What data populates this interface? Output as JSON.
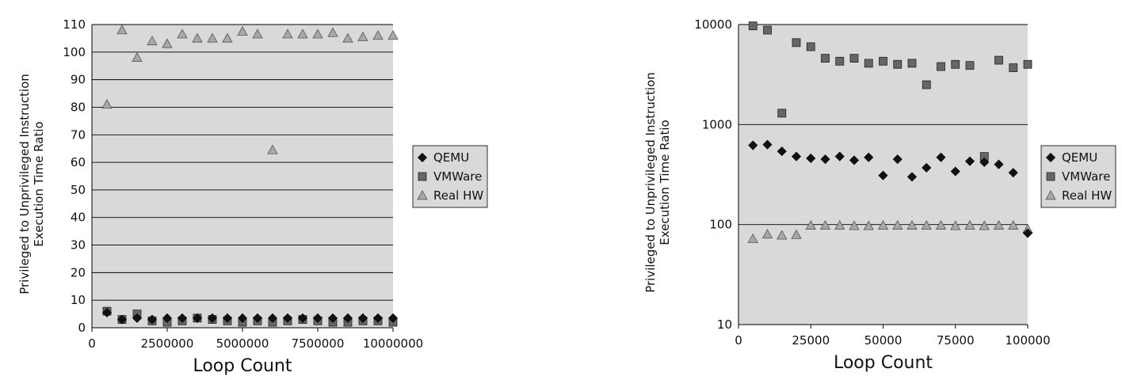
{
  "chart_data": [
    {
      "type": "scatter",
      "xlabel": "Loop Count",
      "ylabel_lines": [
        "Privileged to Unprivileged Instruction",
        "Execution Time Ratio"
      ],
      "xlim": [
        0,
        10000000
      ],
      "ylim": [
        0,
        110
      ],
      "x_ticks": [
        0,
        2500000,
        5000000,
        7500000,
        10000000
      ],
      "x_tick_labels": [
        "0",
        "2500000",
        "5000000",
        "7500000",
        "10000000"
      ],
      "y_ticks": [
        0,
        10,
        20,
        30,
        40,
        50,
        60,
        70,
        80,
        90,
        100,
        110
      ],
      "y_tick_labels": [
        "0",
        "10",
        "20",
        "30",
        "40",
        "50",
        "60",
        "70",
        "80",
        "90",
        "100",
        "110"
      ],
      "y_scale": "linear",
      "grid": "horizontal",
      "legend_position": "right",
      "series": [
        {
          "name": "QEMU",
          "marker": "diamond",
          "color": "#111111",
          "x": [
            500000,
            1000000,
            1500000,
            2000000,
            2500000,
            3000000,
            3500000,
            4000000,
            4500000,
            5000000,
            5500000,
            6000000,
            6500000,
            7000000,
            7500000,
            8000000,
            8500000,
            9000000,
            9500000,
            10000000
          ],
          "y": [
            5.5,
            3,
            3.5,
            3,
            3.5,
            3.5,
            3.5,
            3.5,
            3.5,
            3.5,
            3.5,
            3.5,
            3.5,
            3.5,
            3.5,
            3.5,
            3.5,
            3.5,
            3.5,
            3.5
          ]
        },
        {
          "name": "VMWare",
          "marker": "square",
          "color": "#666666",
          "x": [
            500000,
            1000000,
            1500000,
            2000000,
            2500000,
            3000000,
            3500000,
            4000000,
            4500000,
            5000000,
            5500000,
            6000000,
            6500000,
            7000000,
            7500000,
            8000000,
            8500000,
            9000000,
            9500000,
            10000000
          ],
          "y": [
            6,
            3,
            5,
            2.5,
            2,
            2.5,
            3.5,
            3,
            2.5,
            2,
            2.5,
            2,
            2.5,
            3,
            2.5,
            2,
            2,
            2.5,
            2.5,
            2
          ]
        },
        {
          "name": "Real HW",
          "marker": "triangle",
          "color": "#a8a8a8",
          "x": [
            500000,
            1000000,
            1500000,
            2000000,
            2500000,
            3000000,
            3500000,
            4000000,
            4500000,
            5000000,
            5500000,
            6000000,
            6500000,
            7000000,
            7500000,
            8000000,
            8500000,
            9000000,
            9500000,
            10000000
          ],
          "y": [
            81,
            108,
            98,
            104,
            103,
            106.5,
            105,
            105,
            105,
            107.5,
            106.5,
            64.5,
            106.5,
            106.5,
            106.5,
            107,
            105,
            105.5,
            106,
            106
          ]
        }
      ]
    },
    {
      "type": "scatter",
      "xlabel": "Loop Count",
      "ylabel_lines": [
        "Privileged to Unprivileged Instruction",
        "Execution Time Ratio"
      ],
      "xlim": [
        0,
        100000
      ],
      "ylim": [
        10,
        10000
      ],
      "x_ticks": [
        0,
        25000,
        50000,
        75000,
        100000
      ],
      "x_tick_labels": [
        "0",
        "25000",
        "50000",
        "75000",
        "100000"
      ],
      "y_ticks": [
        10,
        100,
        1000,
        10000
      ],
      "y_tick_labels": [
        "10",
        "100",
        "1000",
        "10000"
      ],
      "y_scale": "log",
      "grid": "horizontal",
      "legend_position": "right",
      "series": [
        {
          "name": "QEMU",
          "marker": "diamond",
          "color": "#111111",
          "x": [
            5000,
            10000,
            15000,
            20000,
            25000,
            30000,
            35000,
            40000,
            45000,
            50000,
            55000,
            60000,
            65000,
            70000,
            75000,
            80000,
            85000,
            90000,
            95000,
            100000
          ],
          "y": [
            620,
            630,
            540,
            480,
            460,
            450,
            480,
            440,
            470,
            310,
            450,
            300,
            370,
            470,
            340,
            430,
            420,
            400,
            330,
            82
          ]
        },
        {
          "name": "VMWare",
          "marker": "square",
          "color": "#666666",
          "x": [
            5000,
            10000,
            15000,
            20000,
            25000,
            30000,
            35000,
            40000,
            45000,
            50000,
            55000,
            60000,
            65000,
            70000,
            75000,
            80000,
            85000,
            90000,
            95000,
            100000
          ],
          "y": [
            9700,
            8800,
            1300,
            6600,
            6000,
            4600,
            4300,
            4600,
            4100,
            4300,
            4000,
            4100,
            2500,
            3800,
            4000,
            3900,
            480,
            4400,
            3700,
            4000
          ]
        },
        {
          "name": "Real HW",
          "marker": "triangle",
          "color": "#a8a8a8",
          "x": [
            5000,
            10000,
            15000,
            20000,
            25000,
            30000,
            35000,
            40000,
            45000,
            50000,
            55000,
            60000,
            65000,
            70000,
            75000,
            80000,
            85000,
            90000,
            95000,
            100000
          ],
          "y": [
            72,
            80,
            78,
            79,
            98,
            98,
            98,
            97,
            97,
            98,
            98,
            98,
            98,
            98,
            97,
            98,
            97,
            98,
            98,
            90
          ]
        }
      ]
    }
  ]
}
